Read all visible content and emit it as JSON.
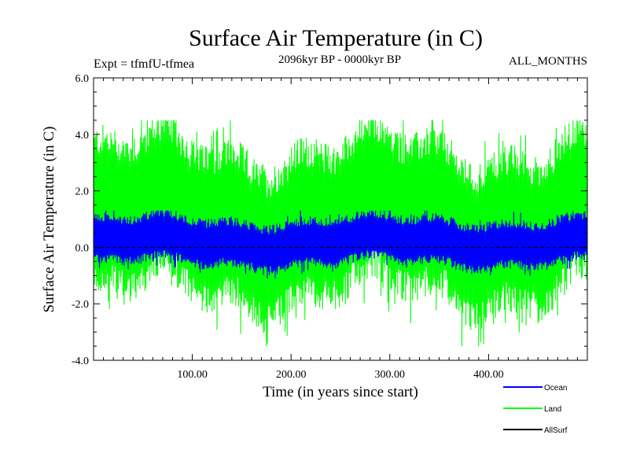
{
  "chart_data": {
    "type": "line",
    "title": "Surface Air Temperature (in C)",
    "subtitle": "2096kyr BP - 0000kyr BP",
    "experiment_label": "Expt = tfmfU-tfmea",
    "months_label": "ALL_MONTHS",
    "xlabel": "Time (in years since start)",
    "ylabel": "Surface Air Temperature (in C)",
    "xlim": [
      0,
      500
    ],
    "ylim": [
      -4.0,
      6.0
    ],
    "x_ticks": [
      100,
      200,
      300,
      400
    ],
    "x_tick_labels": [
      "100.00",
      "200.00",
      "300.00",
      "400.00"
    ],
    "y_ticks": [
      -4,
      -2,
      0,
      2,
      4,
      6
    ],
    "y_tick_labels": [
      "-4.0",
      "-2.0",
      "0.0",
      "2.0",
      "4.0",
      "6.0"
    ],
    "grid": false,
    "legend_position": "bottom-right",
    "series": [
      {
        "name": "Land",
        "color": "#00ff00",
        "mean": 0.9,
        "upper_typical": 3.3,
        "lower_typical": -1.7,
        "max": 4.5,
        "min": -3.5,
        "samples": 500
      },
      {
        "name": "Ocean",
        "color": "#0000ff",
        "mean": 0.2,
        "upper_typical": 0.9,
        "lower_typical": -0.6,
        "max": 1.3,
        "min": -1.1,
        "samples": 500
      },
      {
        "name": "AllSurf",
        "color": "#000000",
        "values_constant": 0.0
      }
    ]
  }
}
